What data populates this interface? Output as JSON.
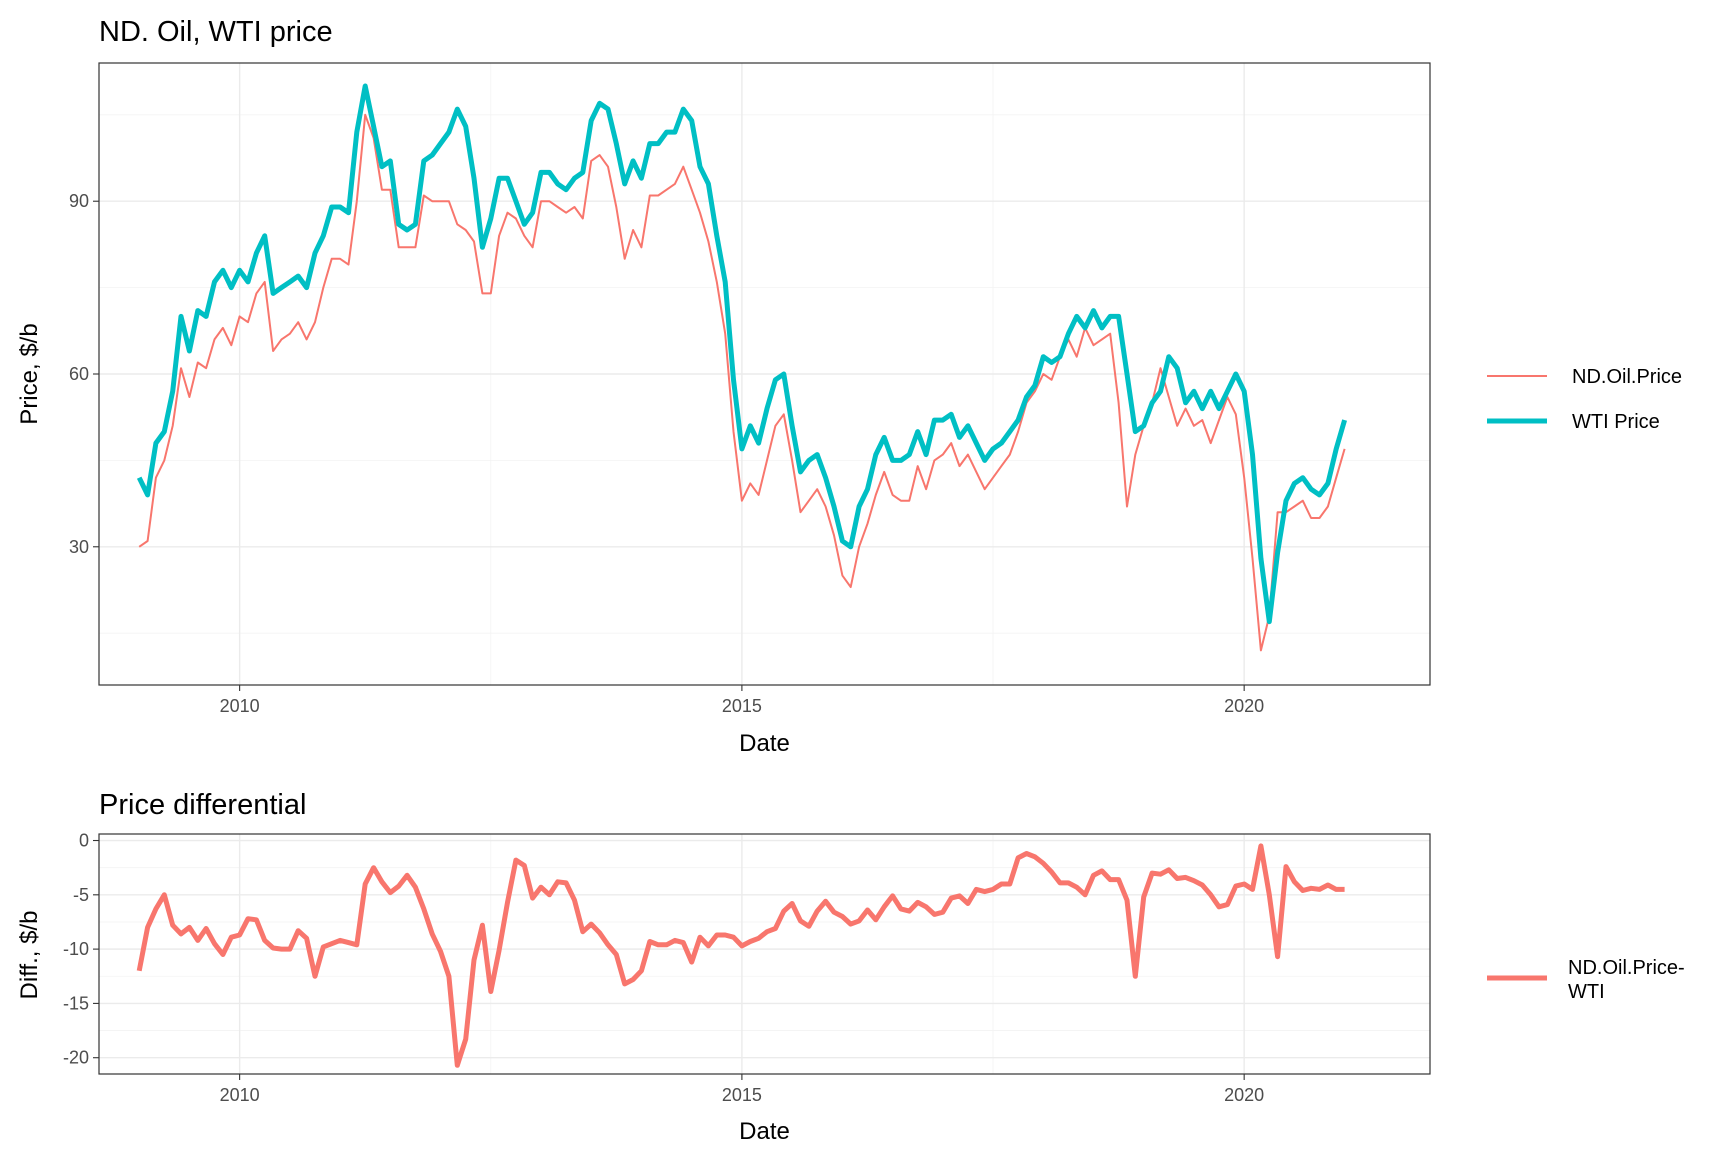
{
  "colors": {
    "nd_oil": "#F8766D",
    "wti": "#00BFC4",
    "grid": "#EBEBEB",
    "border": "#333333"
  },
  "chart_data": [
    {
      "type": "line",
      "title": "ND. Oil, WTI price",
      "xlabel": "Date",
      "ylabel": "Price, $/b",
      "xlim": [
        2008.6,
        2021.85
      ],
      "ylim": [
        6,
        114
      ],
      "x_ticks": [
        2010,
        2015,
        2020
      ],
      "x_tick_labels": [
        "2010",
        "2015",
        "2020"
      ],
      "y_ticks": [
        30,
        60,
        90
      ],
      "y_tick_labels": [
        "30",
        "60",
        "90"
      ],
      "grid": true,
      "legend_position": "right",
      "x_start": 2009.0,
      "x_step_months": 1,
      "series": [
        {
          "name": "ND.Oil.Price",
          "color": "#F8766D",
          "values": [
            30,
            31,
            42,
            45,
            51,
            61,
            56,
            62,
            61,
            66,
            68,
            65,
            70,
            69,
            74,
            76,
            64,
            66,
            67,
            69,
            66,
            69,
            75,
            80,
            80,
            79,
            90,
            105,
            101,
            92,
            92,
            82,
            82,
            82,
            91,
            90,
            90,
            90,
            86,
            85,
            83,
            74,
            74,
            84,
            88,
            87,
            84,
            82,
            90,
            90,
            89,
            88,
            89,
            87,
            97,
            98,
            96,
            89,
            80,
            85,
            82,
            91,
            91,
            92,
            93,
            96,
            92,
            88,
            83,
            76,
            67,
            50,
            38,
            41,
            39,
            45,
            51,
            53,
            45,
            36,
            38,
            40,
            37,
            32,
            25,
            23,
            30,
            34,
            39,
            43,
            39,
            38,
            38,
            44,
            40,
            45,
            46,
            48,
            44,
            46,
            43,
            40,
            42,
            44,
            46,
            50,
            55,
            57,
            60,
            59,
            63,
            66,
            63,
            68,
            65,
            66,
            67,
            55,
            37,
            46,
            51,
            55,
            61,
            56,
            51,
            54,
            51,
            52,
            48,
            52,
            56,
            53,
            42,
            28,
            12,
            18,
            36,
            36,
            37,
            38,
            35,
            35,
            37,
            42,
            47
          ]
        },
        {
          "name": "WTI Price",
          "color": "#00BFC4",
          "values": [
            42,
            39,
            48,
            50,
            57,
            70,
            64,
            71,
            70,
            76,
            78,
            75,
            78,
            76,
            81,
            84,
            74,
            75,
            76,
            77,
            75,
            81,
            84,
            89,
            89,
            88,
            102,
            110,
            103,
            96,
            97,
            86,
            85,
            86,
            97,
            98,
            100,
            102,
            106,
            103,
            94,
            82,
            87,
            94,
            94,
            90,
            86,
            88,
            95,
            95,
            93,
            92,
            94,
            95,
            104,
            107,
            106,
            100,
            93,
            97,
            94,
            100,
            100,
            102,
            102,
            106,
            104,
            96,
            93,
            84,
            76,
            59,
            47,
            51,
            48,
            54,
            59,
            60,
            51,
            43,
            45,
            46,
            42,
            37,
            31,
            30,
            37,
            40,
            46,
            49,
            45,
            45,
            46,
            50,
            46,
            52,
            52,
            53,
            49,
            51,
            48,
            45,
            47,
            48,
            50,
            52,
            56,
            58,
            63,
            62,
            63,
            67,
            70,
            68,
            71,
            68,
            70,
            70,
            60,
            50,
            51,
            55,
            57,
            63,
            61,
            55,
            57,
            54,
            57,
            54,
            57,
            60,
            57,
            46,
            28,
            17,
            29,
            38,
            41,
            42,
            40,
            39,
            41,
            47,
            52
          ]
        }
      ]
    },
    {
      "type": "line",
      "title": "Price differential",
      "xlabel": "Date",
      "ylabel": "Diff., $/b",
      "xlim": [
        2008.6,
        2021.85
      ],
      "ylim": [
        -21.5,
        0.6
      ],
      "x_ticks": [
        2010,
        2015,
        2020
      ],
      "x_tick_labels": [
        "2010",
        "2015",
        "2020"
      ],
      "y_ticks": [
        0,
        -5,
        -10,
        -15,
        -20
      ],
      "y_tick_labels": [
        "0",
        "-5",
        "-10",
        "-15",
        "-20"
      ],
      "grid": true,
      "legend_position": "right",
      "x_start": 2009.0,
      "x_step_months": 1,
      "series": [
        {
          "name": "ND.Oil.Price-WTI",
          "legend_lines": [
            "ND.Oil.Price-",
            "WTI"
          ],
          "color": "#F8766D",
          "values": [
            -12,
            -8,
            -6.3,
            -5,
            -7.8,
            -8.6,
            -8,
            -9.2,
            -8.1,
            -9.5,
            -10.5,
            -8.9,
            -8.7,
            -7.2,
            -7.3,
            -9.2,
            -9.9,
            -10,
            -10,
            -8.3,
            -9,
            -12.5,
            -9.8,
            -9.5,
            -9.2,
            -9.4,
            -9.6,
            -4,
            -2.5,
            -3.8,
            -4.8,
            -4.2,
            -3.2,
            -4.3,
            -6.3,
            -8.6,
            -10.2,
            -12.5,
            -20.7,
            -18.3,
            -11,
            -7.8,
            -13.9,
            -10.1,
            -5.7,
            -1.8,
            -2.3,
            -5.3,
            -4.3,
            -5,
            -3.8,
            -3.9,
            -5.5,
            -8.4,
            -7.7,
            -8.5,
            -9.6,
            -10.5,
            -13.2,
            -12.8,
            -12,
            -9.3,
            -9.6,
            -9.6,
            -9.2,
            -9.4,
            -11.2,
            -8.9,
            -9.7,
            -8.7,
            -8.7,
            -8.9,
            -9.7,
            -9.3,
            -9,
            -8.4,
            -8.1,
            -6.5,
            -5.8,
            -7.4,
            -7.9,
            -6.5,
            -5.6,
            -6.6,
            -7,
            -7.7,
            -7.4,
            -6.4,
            -7.3,
            -6.1,
            -5.1,
            -6.3,
            -6.5,
            -5.7,
            -6.1,
            -6.8,
            -6.6,
            -5.3,
            -5.1,
            -5.8,
            -4.5,
            -4.7,
            -4.5,
            -4,
            -4,
            -1.6,
            -1.2,
            -1.5,
            -2.1,
            -2.9,
            -3.9,
            -3.9,
            -4.3,
            -5,
            -3.2,
            -2.8,
            -3.6,
            -3.6,
            -5.5,
            -12.5,
            -5.2,
            -3,
            -3.1,
            -2.7,
            -3.5,
            -3.4,
            -3.7,
            -4.1,
            -5,
            -6.1,
            -5.9,
            -4.2,
            -4,
            -4.5,
            -0.5,
            -5,
            -10.7,
            -2.4,
            -3.8,
            -4.6,
            -4.4,
            -4.5,
            -4.1,
            -4.5,
            -4.5
          ]
        }
      ]
    }
  ]
}
